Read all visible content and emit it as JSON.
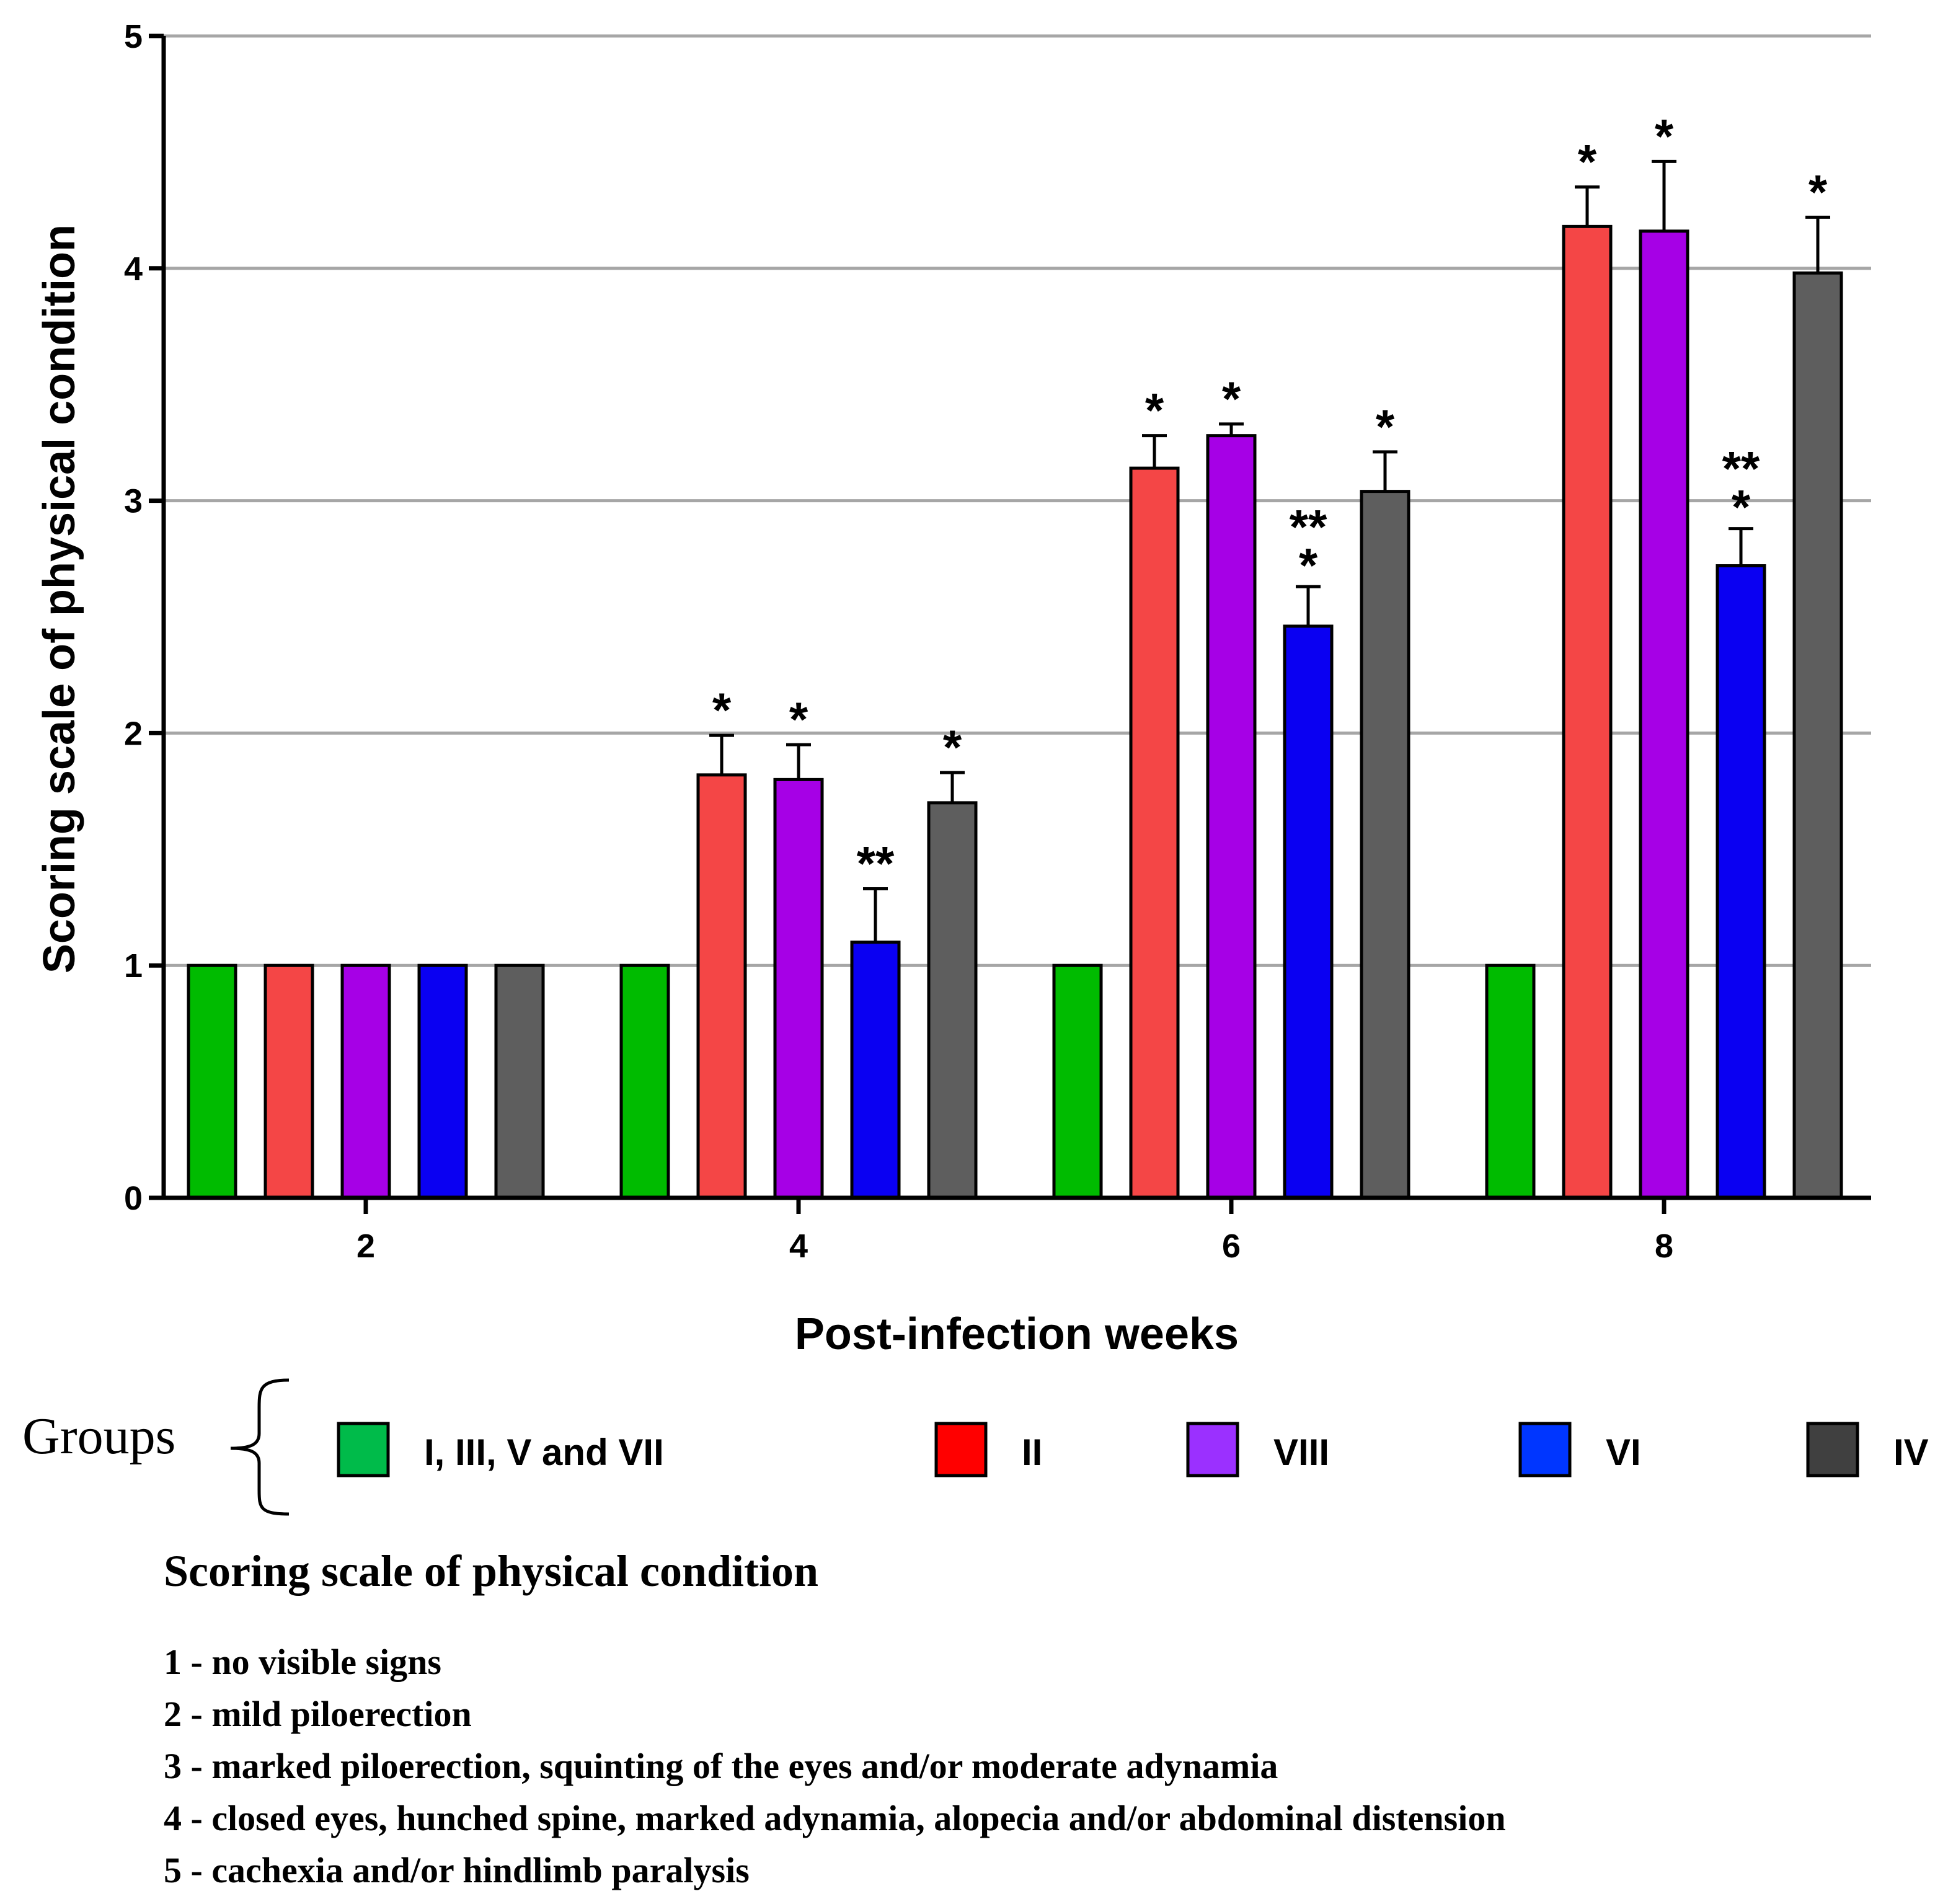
{
  "chart_data": {
    "type": "bar",
    "title": "",
    "xlabel": "Post-infection weeks",
    "ylabel": "Scoring scale of physical condition",
    "ylim": [
      0,
      5
    ],
    "yticks": [
      "0",
      "1",
      "2",
      "3",
      "4",
      "5"
    ],
    "grid": "horizontal",
    "categories": [
      "2",
      "4",
      "6",
      "8"
    ],
    "series": [
      {
        "name": "I, III, V and VII",
        "color": "#00bb00",
        "values": [
          1,
          1,
          1,
          1
        ],
        "errors": [
          0,
          0,
          0,
          0
        ],
        "sig": [
          "",
          "",
          "",
          ""
        ]
      },
      {
        "name": "II",
        "color": "#f44646",
        "values": [
          1,
          1.82,
          3.14,
          4.18
        ],
        "errors": [
          0,
          0.17,
          0.14,
          0.17
        ],
        "sig": [
          "",
          "*",
          "*",
          "*"
        ]
      },
      {
        "name": "VIII",
        "color": "#a600e6",
        "values": [
          1,
          1.8,
          3.28,
          4.16
        ],
        "errors": [
          0,
          0.15,
          0.05,
          0.3
        ],
        "sig": [
          "",
          "*",
          "*",
          "*"
        ]
      },
      {
        "name": "VI",
        "color": "#0a00f2",
        "values": [
          1,
          1.1,
          2.46,
          2.72
        ],
        "errors": [
          0,
          0.23,
          0.17,
          0.16
        ],
        "sig": [
          "",
          "**",
          "***",
          "***"
        ]
      },
      {
        "name": "IV",
        "color": "#5e5e5e",
        "values": [
          1,
          1.7,
          3.04,
          3.98
        ],
        "errors": [
          0,
          0.13,
          0.17,
          0.24
        ],
        "sig": [
          "",
          "*",
          "*",
          "*"
        ]
      }
    ],
    "legend": {
      "title": "Groups",
      "placement": "bottom",
      "swatch_colors": [
        "#00bb4a",
        "#ff0000",
        "#9b30ff",
        "#0036ff",
        "#404040"
      ]
    },
    "annotation": {
      "title": "Scoring scale of physical condition",
      "items": [
        "1 - no visible signs",
        "2 - mild piloerection",
        "3 - marked piloerection, squinting of the eyes and/or moderate adynamia",
        "4 - closed eyes, hunched spine, marked adynamia, alopecia and/or abdominal distension",
        "5 - cachexia and/or hindlimb paralysis"
      ]
    }
  }
}
